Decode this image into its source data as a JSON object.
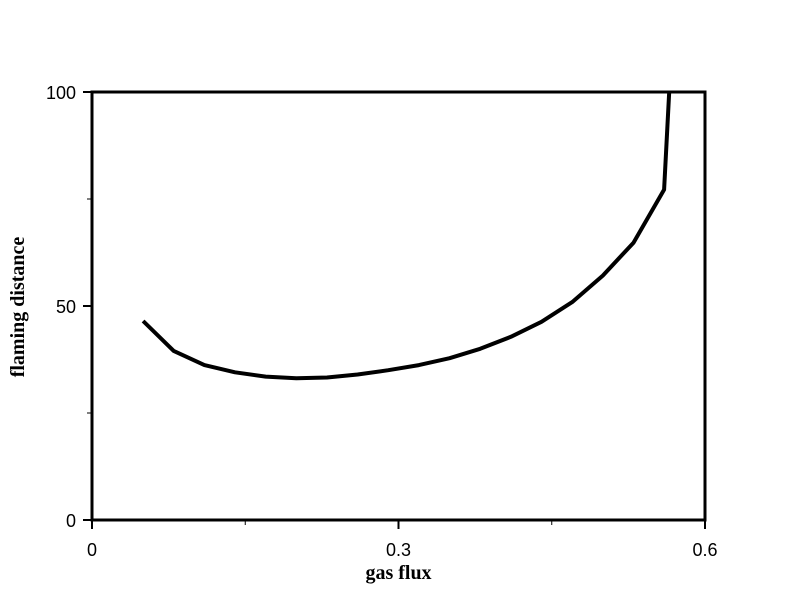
{
  "chart_data": {
    "type": "line",
    "title": "",
    "xlabel": "gas flux",
    "ylabel": "flaming distance",
    "xlim": [
      0,
      0.6
    ],
    "ylim": [
      0,
      100
    ],
    "x_ticks": [
      0,
      0.3,
      0.6
    ],
    "x_tick_labels": [
      "0",
      "0.3",
      "0.6"
    ],
    "x_minor_ticks": [
      0.15,
      0.45
    ],
    "y_ticks": [
      0,
      50,
      100
    ],
    "y_tick_labels": [
      "0",
      "50",
      "100"
    ],
    "y_minor_ticks": [
      25,
      75
    ],
    "grid": false,
    "legend": "none",
    "line_color": "#000000",
    "series": [
      {
        "x": [
          0.05,
          0.08,
          0.11,
          0.14,
          0.17,
          0.2,
          0.23,
          0.26,
          0.29,
          0.32,
          0.35,
          0.38,
          0.41,
          0.44,
          0.47,
          0.5,
          0.53,
          0.56,
          0.565
        ],
        "y": [
          46.5,
          39.5,
          36.2,
          34.5,
          33.5,
          33.1,
          33.3,
          34.0,
          35.0,
          36.2,
          37.8,
          40.0,
          42.8,
          46.3,
          50.9,
          57.1,
          64.8,
          77.2,
          100
        ]
      }
    ]
  }
}
